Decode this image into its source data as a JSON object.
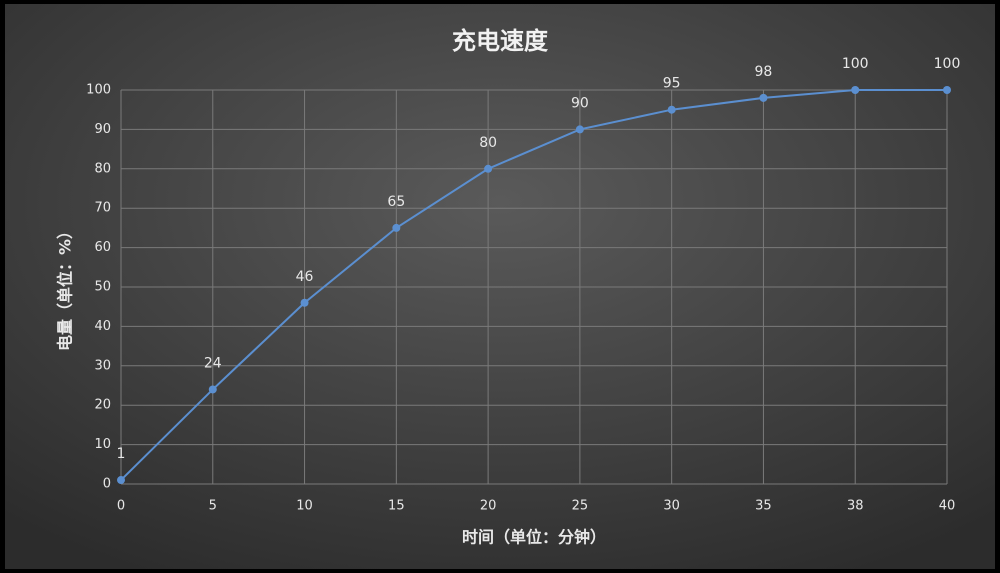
{
  "chart_data": {
    "type": "line",
    "title": "充电速度",
    "x_label": "时间（单位：分钟）",
    "y_label": "电量（单位：%）",
    "categories": [
      "0",
      "5",
      "10",
      "15",
      "20",
      "25",
      "30",
      "35",
      "38",
      "40"
    ],
    "values": [
      1,
      24,
      46,
      65,
      80,
      90,
      95,
      98,
      100,
      100
    ],
    "color": "#5b8fd0",
    "ylim": [
      0,
      100
    ],
    "yticks": [
      0,
      10,
      20,
      30,
      40,
      50,
      60,
      70,
      80,
      90,
      100
    ],
    "grid": true
  }
}
